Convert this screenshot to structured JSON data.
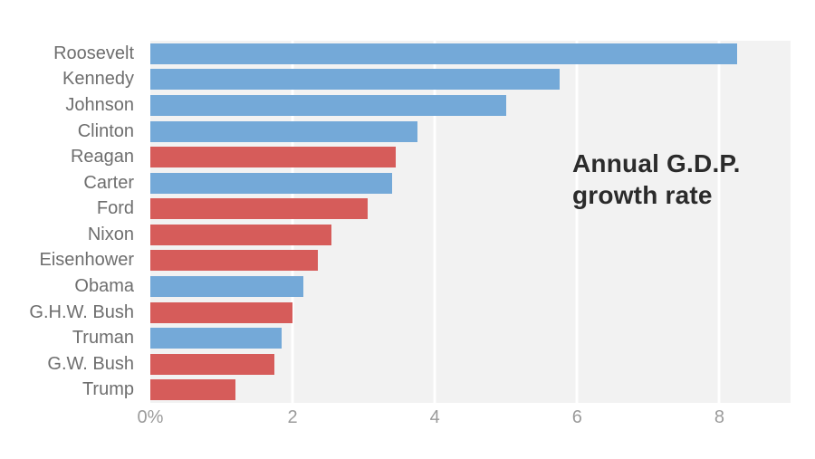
{
  "title_lines": [
    "Annual G.D.P.",
    "growth rate"
  ],
  "colors": {
    "democrat_bar": "#74a9d8",
    "republican_bar": "#d65c5a",
    "plot_background": "#f2f2f2",
    "gridline": "#ffffff",
    "y_label_text": "#6e6e6e",
    "x_tick_text": "#9b9b9b",
    "title_text": "#2b2b2b",
    "page_background": "#ffffff"
  },
  "chart_data": {
    "type": "bar",
    "orientation": "horizontal",
    "title": "Annual G.D.P. growth rate",
    "xlabel": "",
    "ylabel": "",
    "xlim": [
      0,
      9
    ],
    "x_ticks": [
      {
        "value": 0,
        "label": "0%"
      },
      {
        "value": 2,
        "label": "2"
      },
      {
        "value": 4,
        "label": "4"
      },
      {
        "value": 6,
        "label": "6"
      },
      {
        "value": 8,
        "label": "8"
      }
    ],
    "grid": true,
    "gridline_values": [
      2,
      4,
      6,
      8
    ],
    "legend_position": "none",
    "color_encoding": "party (blue = Democrat, red = Republican)",
    "categories": [
      "Roosevelt",
      "Kennedy",
      "Johnson",
      "Clinton",
      "Reagan",
      "Carter",
      "Ford",
      "Nixon",
      "Eisenhower",
      "Obama",
      "G.H.W. Bush",
      "Truman",
      "G.W. Bush",
      "Trump"
    ],
    "bars": [
      {
        "name": "Roosevelt",
        "value": 8.25,
        "party": "democrat"
      },
      {
        "name": "Kennedy",
        "value": 5.75,
        "party": "democrat"
      },
      {
        "name": "Johnson",
        "value": 5.0,
        "party": "democrat"
      },
      {
        "name": "Clinton",
        "value": 3.75,
        "party": "democrat"
      },
      {
        "name": "Reagan",
        "value": 3.45,
        "party": "republican"
      },
      {
        "name": "Carter",
        "value": 3.4,
        "party": "democrat"
      },
      {
        "name": "Ford",
        "value": 3.05,
        "party": "republican"
      },
      {
        "name": "Nixon",
        "value": 2.55,
        "party": "republican"
      },
      {
        "name": "Eisenhower",
        "value": 2.35,
        "party": "republican"
      },
      {
        "name": "Obama",
        "value": 2.15,
        "party": "democrat"
      },
      {
        "name": "G.H.W. Bush",
        "value": 2.0,
        "party": "republican"
      },
      {
        "name": "Truman",
        "value": 1.85,
        "party": "democrat"
      },
      {
        "name": "G.W. Bush",
        "value": 1.75,
        "party": "republican"
      },
      {
        "name": "Trump",
        "value": 1.2,
        "party": "republican"
      }
    ]
  }
}
